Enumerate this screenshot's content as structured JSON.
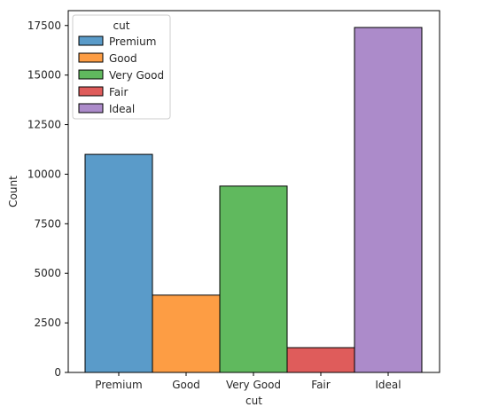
{
  "chart_data": {
    "type": "bar",
    "categories": [
      "Premium",
      "Good",
      "Very Good",
      "Fair",
      "Ideal"
    ],
    "values": [
      11000,
      3900,
      9400,
      1250,
      17400
    ],
    "colors": [
      "#5a9bc9",
      "#fd9d44",
      "#60b95e",
      "#df5c5b",
      "#ac8bca"
    ],
    "xlabel": "cut",
    "ylabel": "Count",
    "ylim": [
      0,
      18250
    ],
    "yticks": [
      0,
      2500,
      5000,
      7500,
      10000,
      12500,
      15000,
      17500
    ],
    "grid": false,
    "legend": {
      "title": "cut",
      "placement": "top-left",
      "entries": [
        "Premium",
        "Good",
        "Very Good",
        "Fair",
        "Ideal"
      ]
    }
  }
}
